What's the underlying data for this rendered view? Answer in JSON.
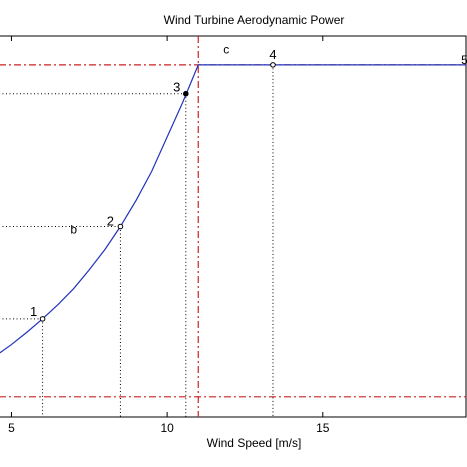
{
  "chart_data": {
    "type": "line",
    "title": "Wind Turbine Aerodynamic Power",
    "xlabel": "Wind Speed [m/s]",
    "ylabel": "",
    "xlim": [
      4.6,
      19.6
    ],
    "ylim": [
      -0.22,
      1.1
    ],
    "x_ticks": [
      5,
      10,
      15
    ],
    "x_tick_labels": [
      "5",
      "10",
      "15"
    ],
    "grid": false,
    "series": [
      {
        "x": [
          4.6,
          5.0,
          5.5,
          6.0,
          6.5,
          7.0,
          7.5,
          8.0,
          8.5,
          9.0,
          9.5,
          10.0,
          10.5,
          11.0,
          11.5,
          12.0,
          13.0,
          14.0,
          15.0,
          16.0,
          17.0,
          18.0,
          19.0,
          19.6
        ],
        "y": [
          0.0,
          0.031,
          0.074,
          0.12,
          0.17,
          0.225,
          0.29,
          0.36,
          0.44,
          0.53,
          0.63,
          0.75,
          0.87,
          1.0,
          1.0,
          1.0,
          1.0,
          1.0,
          1.0,
          1.0,
          1.0,
          1.0,
          1.0,
          1.0
        ],
        "color": "#2233bb"
      }
    ],
    "reference_lines": {
      "vertical_x": 11.0,
      "horizontal_y": [
        1.0,
        -0.15
      ],
      "color": "#cc2222"
    },
    "points": [
      {
        "label": "1",
        "x": 6.0,
        "y": 0.12
      },
      {
        "label": "2",
        "x": 8.5,
        "y": 0.44
      },
      {
        "label": "3",
        "x": 10.6,
        "y": 0.9
      },
      {
        "label": "4",
        "x": 13.4,
        "y": 1.0
      }
    ],
    "annotations": [
      {
        "text": "b",
        "x": 7.0,
        "y": 0.415
      },
      {
        "text": "c",
        "x": 11.9,
        "y": 1.04
      }
    ],
    "edge_labels": [
      {
        "text": "5",
        "x": 19.55,
        "y": 1.0
      }
    ]
  }
}
